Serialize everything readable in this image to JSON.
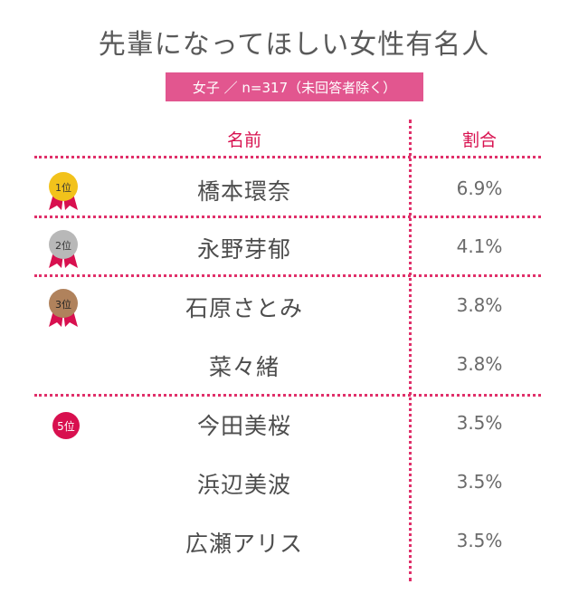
{
  "title": "先輩になってほしい女性有名人",
  "subtitle": "女子 ／ n=317（未回答者除く）",
  "columns": {
    "name": "名前",
    "pct": "割合"
  },
  "colors": {
    "accent": "#d8104f",
    "banner": "#e2568f",
    "gold": "#f2c21b",
    "silver": "#b8b8b8",
    "bronze": "#b0825c"
  },
  "rank_labels": {
    "r1": "1位",
    "r2": "2位",
    "r3": "3位",
    "r5": "5位"
  },
  "chart_data": {
    "type": "table",
    "title": "先輩になってほしい女性有名人",
    "subtitle": "女子 ／ n=317（未回答者除く）",
    "columns": [
      "名前",
      "割合"
    ],
    "rows": [
      {
        "rank": "1位",
        "name": "橋本環奈",
        "pct": "6.9%",
        "value": 6.9
      },
      {
        "rank": "2位",
        "name": "永野芽郁",
        "pct": "4.1%",
        "value": 4.1
      },
      {
        "rank": "3位",
        "name": "石原さとみ",
        "pct": "3.8%",
        "value": 3.8
      },
      {
        "rank": "",
        "name": "菜々緒",
        "pct": "3.8%",
        "value": 3.8
      },
      {
        "rank": "5位",
        "name": "今田美桜",
        "pct": "3.5%",
        "value": 3.5
      },
      {
        "rank": "",
        "name": "浜辺美波",
        "pct": "3.5%",
        "value": 3.5
      },
      {
        "rank": "",
        "name": "広瀬アリス",
        "pct": "3.5%",
        "value": 3.5
      }
    ]
  }
}
